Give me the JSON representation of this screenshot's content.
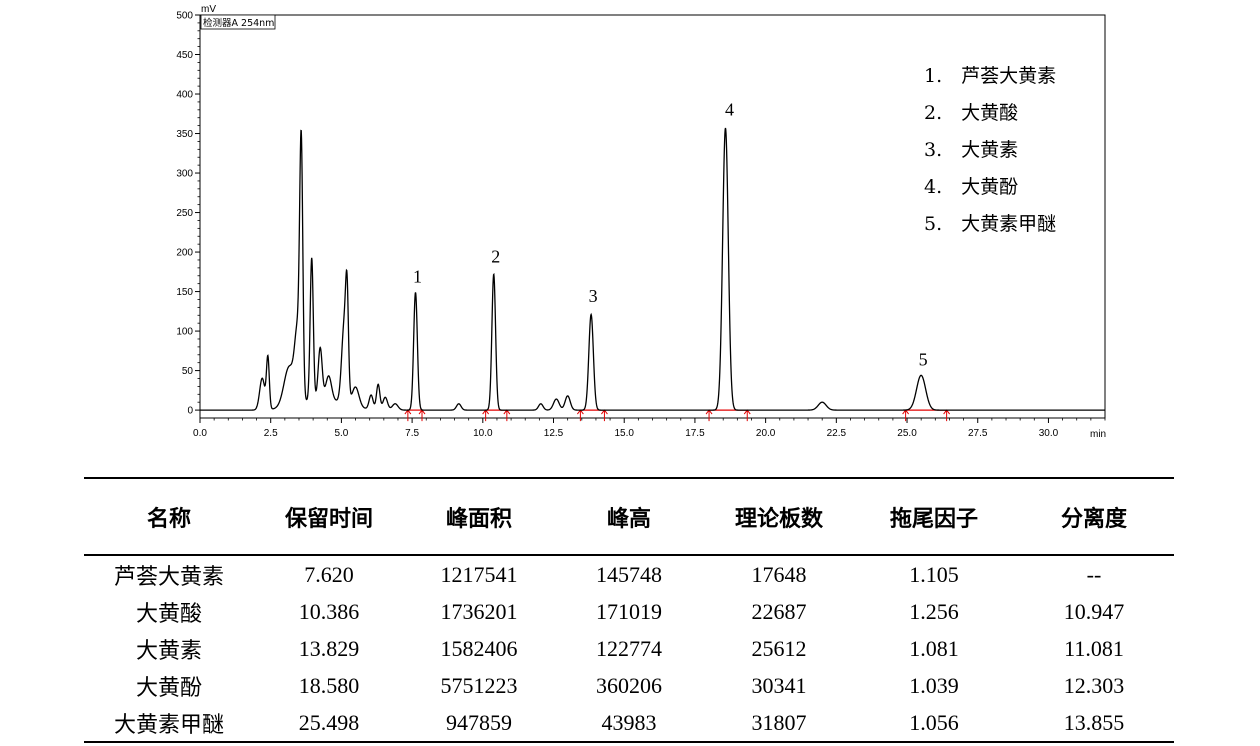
{
  "chart_data": {
    "type": "line",
    "detector": "检测器A 254nm",
    "y_unit": "mV",
    "x_unit": "min",
    "xlim": [
      0.0,
      32.0
    ],
    "ylim": [
      -10,
      500
    ],
    "x_ticks": [
      "0.0",
      "2.5",
      "5.0",
      "7.5",
      "10.0",
      "12.5",
      "15.0",
      "17.5",
      "20.0",
      "22.5",
      "25.0",
      "27.5",
      "30.0"
    ],
    "y_ticks": [
      "0",
      "50",
      "100",
      "150",
      "200",
      "250",
      "300",
      "350",
      "400",
      "450",
      "500"
    ],
    "grid": false,
    "legend_position": "top-right",
    "legend": [
      "1.　芦荟大黄素",
      "2.　大黄酸",
      "3.　大黄素",
      "4.　大黄酚",
      "5.　大黄素甲醚"
    ],
    "peak_labels": [
      {
        "label": "1",
        "x": 7.62,
        "y": 149
      },
      {
        "label": "2",
        "x": 10.386,
        "y": 174
      },
      {
        "label": "3",
        "x": 13.829,
        "y": 124
      },
      {
        "label": "4",
        "x": 18.58,
        "y": 360
      },
      {
        "label": "5",
        "x": 25.498,
        "y": 44
      }
    ],
    "peaks": [
      {
        "t": 2.2,
        "h": 40,
        "w": 0.09
      },
      {
        "t": 2.4,
        "h": 65,
        "w": 0.05
      },
      {
        "t": 3.15,
        "h": 50,
        "w": 0.18
      },
      {
        "t": 3.45,
        "h": 85,
        "w": 0.1
      },
      {
        "t": 3.58,
        "h": 305,
        "w": 0.055
      },
      {
        "t": 3.95,
        "h": 180,
        "w": 0.055
      },
      {
        "t": 4.25,
        "h": 65,
        "w": 0.07
      },
      {
        "t": 4.55,
        "h": 30,
        "w": 0.1
      },
      {
        "t": 5.1,
        "h": 100,
        "w": 0.09
      },
      {
        "t": 5.2,
        "h": 110,
        "w": 0.05
      },
      {
        "t": 5.5,
        "h": 25,
        "w": 0.12
      },
      {
        "t": 6.05,
        "h": 18,
        "w": 0.07
      },
      {
        "t": 6.3,
        "h": 32,
        "w": 0.06
      },
      {
        "t": 6.55,
        "h": 16,
        "w": 0.08
      },
      {
        "t": 6.9,
        "h": 8,
        "w": 0.1
      },
      {
        "t": 7.62,
        "h": 149,
        "w": 0.065
      },
      {
        "t": 9.15,
        "h": 8,
        "w": 0.08
      },
      {
        "t": 10.386,
        "h": 172,
        "w": 0.065
      },
      {
        "t": 12.05,
        "h": 8,
        "w": 0.08
      },
      {
        "t": 12.6,
        "h": 14,
        "w": 0.1
      },
      {
        "t": 13.0,
        "h": 18,
        "w": 0.09
      },
      {
        "t": 13.829,
        "h": 121,
        "w": 0.08
      },
      {
        "t": 18.58,
        "h": 357,
        "w": 0.1
      },
      {
        "t": 22.0,
        "h": 10,
        "w": 0.14
      },
      {
        "t": 25.498,
        "h": 44,
        "w": 0.16
      }
    ],
    "integration_marks": [
      {
        "start": 7.35,
        "end": 7.85
      },
      {
        "start": 10.1,
        "end": 10.85
      },
      {
        "start": 13.45,
        "end": 14.3
      },
      {
        "start": 18.0,
        "end": 19.35
      },
      {
        "start": 24.95,
        "end": 26.4
      }
    ]
  },
  "table": {
    "headers": [
      "名称",
      "保留时间",
      "峰面积",
      "峰高",
      "理论板数",
      "拖尾因子",
      "分离度"
    ],
    "rows": [
      [
        "芦荟大黄素",
        "7.620",
        "1217541",
        "145748",
        "17648",
        "1.105",
        "--"
      ],
      [
        "大黄酸",
        "10.386",
        "1736201",
        "171019",
        "22687",
        "1.256",
        "10.947"
      ],
      [
        "大黄素",
        "13.829",
        "1582406",
        "122774",
        "25612",
        "1.081",
        "11.081"
      ],
      [
        "大黄酚",
        "18.580",
        "5751223",
        "360206",
        "30341",
        "1.039",
        "12.303"
      ],
      [
        "大黄素甲醚",
        "25.498",
        "947859",
        "43983",
        "31807",
        "1.056",
        "13.855"
      ]
    ]
  }
}
